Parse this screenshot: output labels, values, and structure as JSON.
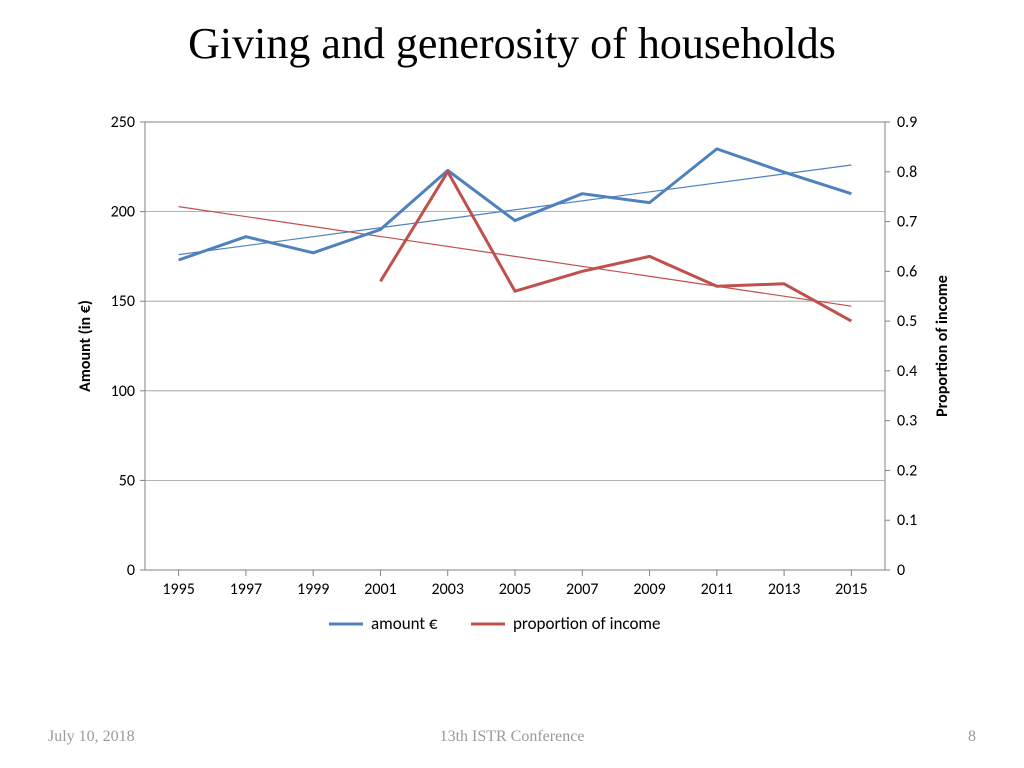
{
  "title": "Giving and generosity of households",
  "footer": {
    "date": "July 10, 2018",
    "venue": "13th ISTR Conference",
    "page": "8"
  },
  "chart": {
    "type": "line",
    "plot_background": "#ffffff",
    "grid_color": "#9a9a9a",
    "axis_color": "#808080",
    "box_color": "#808080",
    "axis_font_size": 16,
    "label_font_size": 16,
    "legend_font_size": 17,
    "axis_title_font_weight": "bold",
    "x": {
      "categories": [
        1995,
        1997,
        1999,
        2001,
        2003,
        2005,
        2007,
        2009,
        2011,
        2013,
        2015
      ]
    },
    "y_left": {
      "title": "Amount (in €)",
      "min": 0,
      "max": 250,
      "step": 50
    },
    "y_right": {
      "title": "Proportion of income",
      "min": 0,
      "max": 0.9,
      "step": 0.1
    },
    "series": [
      {
        "name": "amount €",
        "axis": "left",
        "color": "#4f81bd",
        "line_width": 3,
        "values": [
          173,
          186,
          177,
          190,
          223,
          195,
          210,
          205,
          235,
          222,
          210
        ],
        "trend": {
          "start_value": 176,
          "end_value": 226,
          "color": "#4f81bd",
          "line_width": 1.2
        }
      },
      {
        "name": "proportion of income",
        "axis": "right",
        "color": "#c0504d",
        "line_width": 3,
        "values": [
          null,
          null,
          null,
          0.58,
          0.8,
          0.56,
          0.6,
          0.63,
          0.57,
          0.575,
          0.5
        ],
        "trend": {
          "start_value": 0.73,
          "end_value": 0.53,
          "color": "#c0504d",
          "line_width": 1.2
        }
      }
    ],
    "legend": {
      "position": "bottom"
    }
  }
}
